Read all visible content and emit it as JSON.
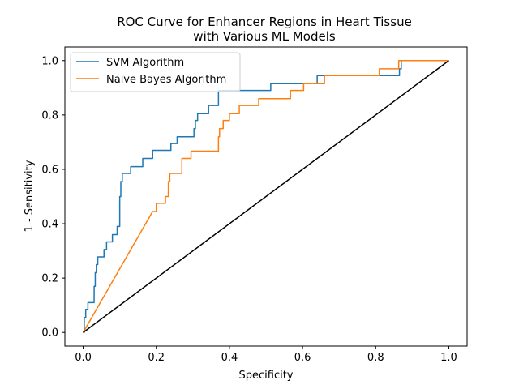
{
  "chart_data": {
    "type": "line",
    "title_lines": [
      "ROC Curve for Enhancer Regions in Heart Tissue",
      "with Various ML Models"
    ],
    "xlabel": "Specificity",
    "ylabel": "1 - Sensitivity",
    "xlim": [
      -0.05,
      1.05
    ],
    "ylim": [
      -0.05,
      1.05
    ],
    "xticks": [
      "0.0",
      "0.2",
      "0.4",
      "0.6",
      "0.8",
      "1.0"
    ],
    "yticks": [
      "0.0",
      "0.2",
      "0.4",
      "0.6",
      "0.8",
      "1.0"
    ],
    "grid": false,
    "legend_position": "top-left",
    "series": [
      {
        "name": "SVM Algorithm",
        "color": "#1f77b4",
        "x": [
          0.0,
          0.003,
          0.003,
          0.007,
          0.007,
          0.013,
          0.013,
          0.03,
          0.03,
          0.033,
          0.033,
          0.036,
          0.036,
          0.04,
          0.04,
          0.057,
          0.057,
          0.064,
          0.064,
          0.08,
          0.08,
          0.093,
          0.093,
          0.1,
          0.1,
          0.103,
          0.103,
          0.107,
          0.107,
          0.13,
          0.13,
          0.163,
          0.163,
          0.19,
          0.19,
          0.24,
          0.24,
          0.257,
          0.257,
          0.303,
          0.303,
          0.307,
          0.307,
          0.313,
          0.313,
          0.343,
          0.343,
          0.37,
          0.37,
          0.513,
          0.513,
          0.64,
          0.64,
          0.865,
          0.865,
          0.87,
          0.87,
          1.0
        ],
        "y": [
          0.0,
          0.0,
          0.055,
          0.055,
          0.085,
          0.085,
          0.11,
          0.11,
          0.17,
          0.17,
          0.22,
          0.22,
          0.25,
          0.25,
          0.278,
          0.278,
          0.305,
          0.305,
          0.333,
          0.333,
          0.36,
          0.36,
          0.39,
          0.39,
          0.5,
          0.5,
          0.555,
          0.555,
          0.585,
          0.585,
          0.61,
          0.61,
          0.64,
          0.64,
          0.67,
          0.67,
          0.695,
          0.695,
          0.72,
          0.72,
          0.75,
          0.75,
          0.78,
          0.78,
          0.805,
          0.805,
          0.835,
          0.835,
          0.89,
          0.89,
          0.915,
          0.915,
          0.945,
          0.945,
          0.97,
          0.97,
          1.0,
          1.0
        ]
      },
      {
        "name": "Naive Bayes Algorithm",
        "color": "#ff7f0e",
        "x": [
          0.0,
          0.19,
          0.19,
          0.2,
          0.2,
          0.225,
          0.225,
          0.233,
          0.233,
          0.237,
          0.237,
          0.27,
          0.27,
          0.28,
          0.28,
          0.295,
          0.295,
          0.37,
          0.37,
          0.373,
          0.373,
          0.377,
          0.377,
          0.383,
          0.383,
          0.4,
          0.4,
          0.427,
          0.427,
          0.48,
          0.48,
          0.567,
          0.567,
          0.603,
          0.603,
          0.66,
          0.66,
          0.81,
          0.81,
          0.863,
          0.863,
          1.0
        ],
        "y": [
          0.0,
          0.445,
          0.445,
          0.445,
          0.475,
          0.475,
          0.5,
          0.5,
          0.555,
          0.555,
          0.585,
          0.585,
          0.64,
          0.64,
          0.64,
          0.64,
          0.667,
          0.667,
          0.72,
          0.72,
          0.75,
          0.75,
          0.75,
          0.75,
          0.78,
          0.78,
          0.805,
          0.805,
          0.835,
          0.835,
          0.86,
          0.86,
          0.89,
          0.89,
          0.915,
          0.915,
          0.945,
          0.945,
          0.97,
          0.97,
          1.0,
          1.0
        ]
      },
      {
        "color": "#000000",
        "x": [
          0.0,
          1.0
        ],
        "y": [
          0.0,
          1.0
        ]
      }
    ]
  }
}
